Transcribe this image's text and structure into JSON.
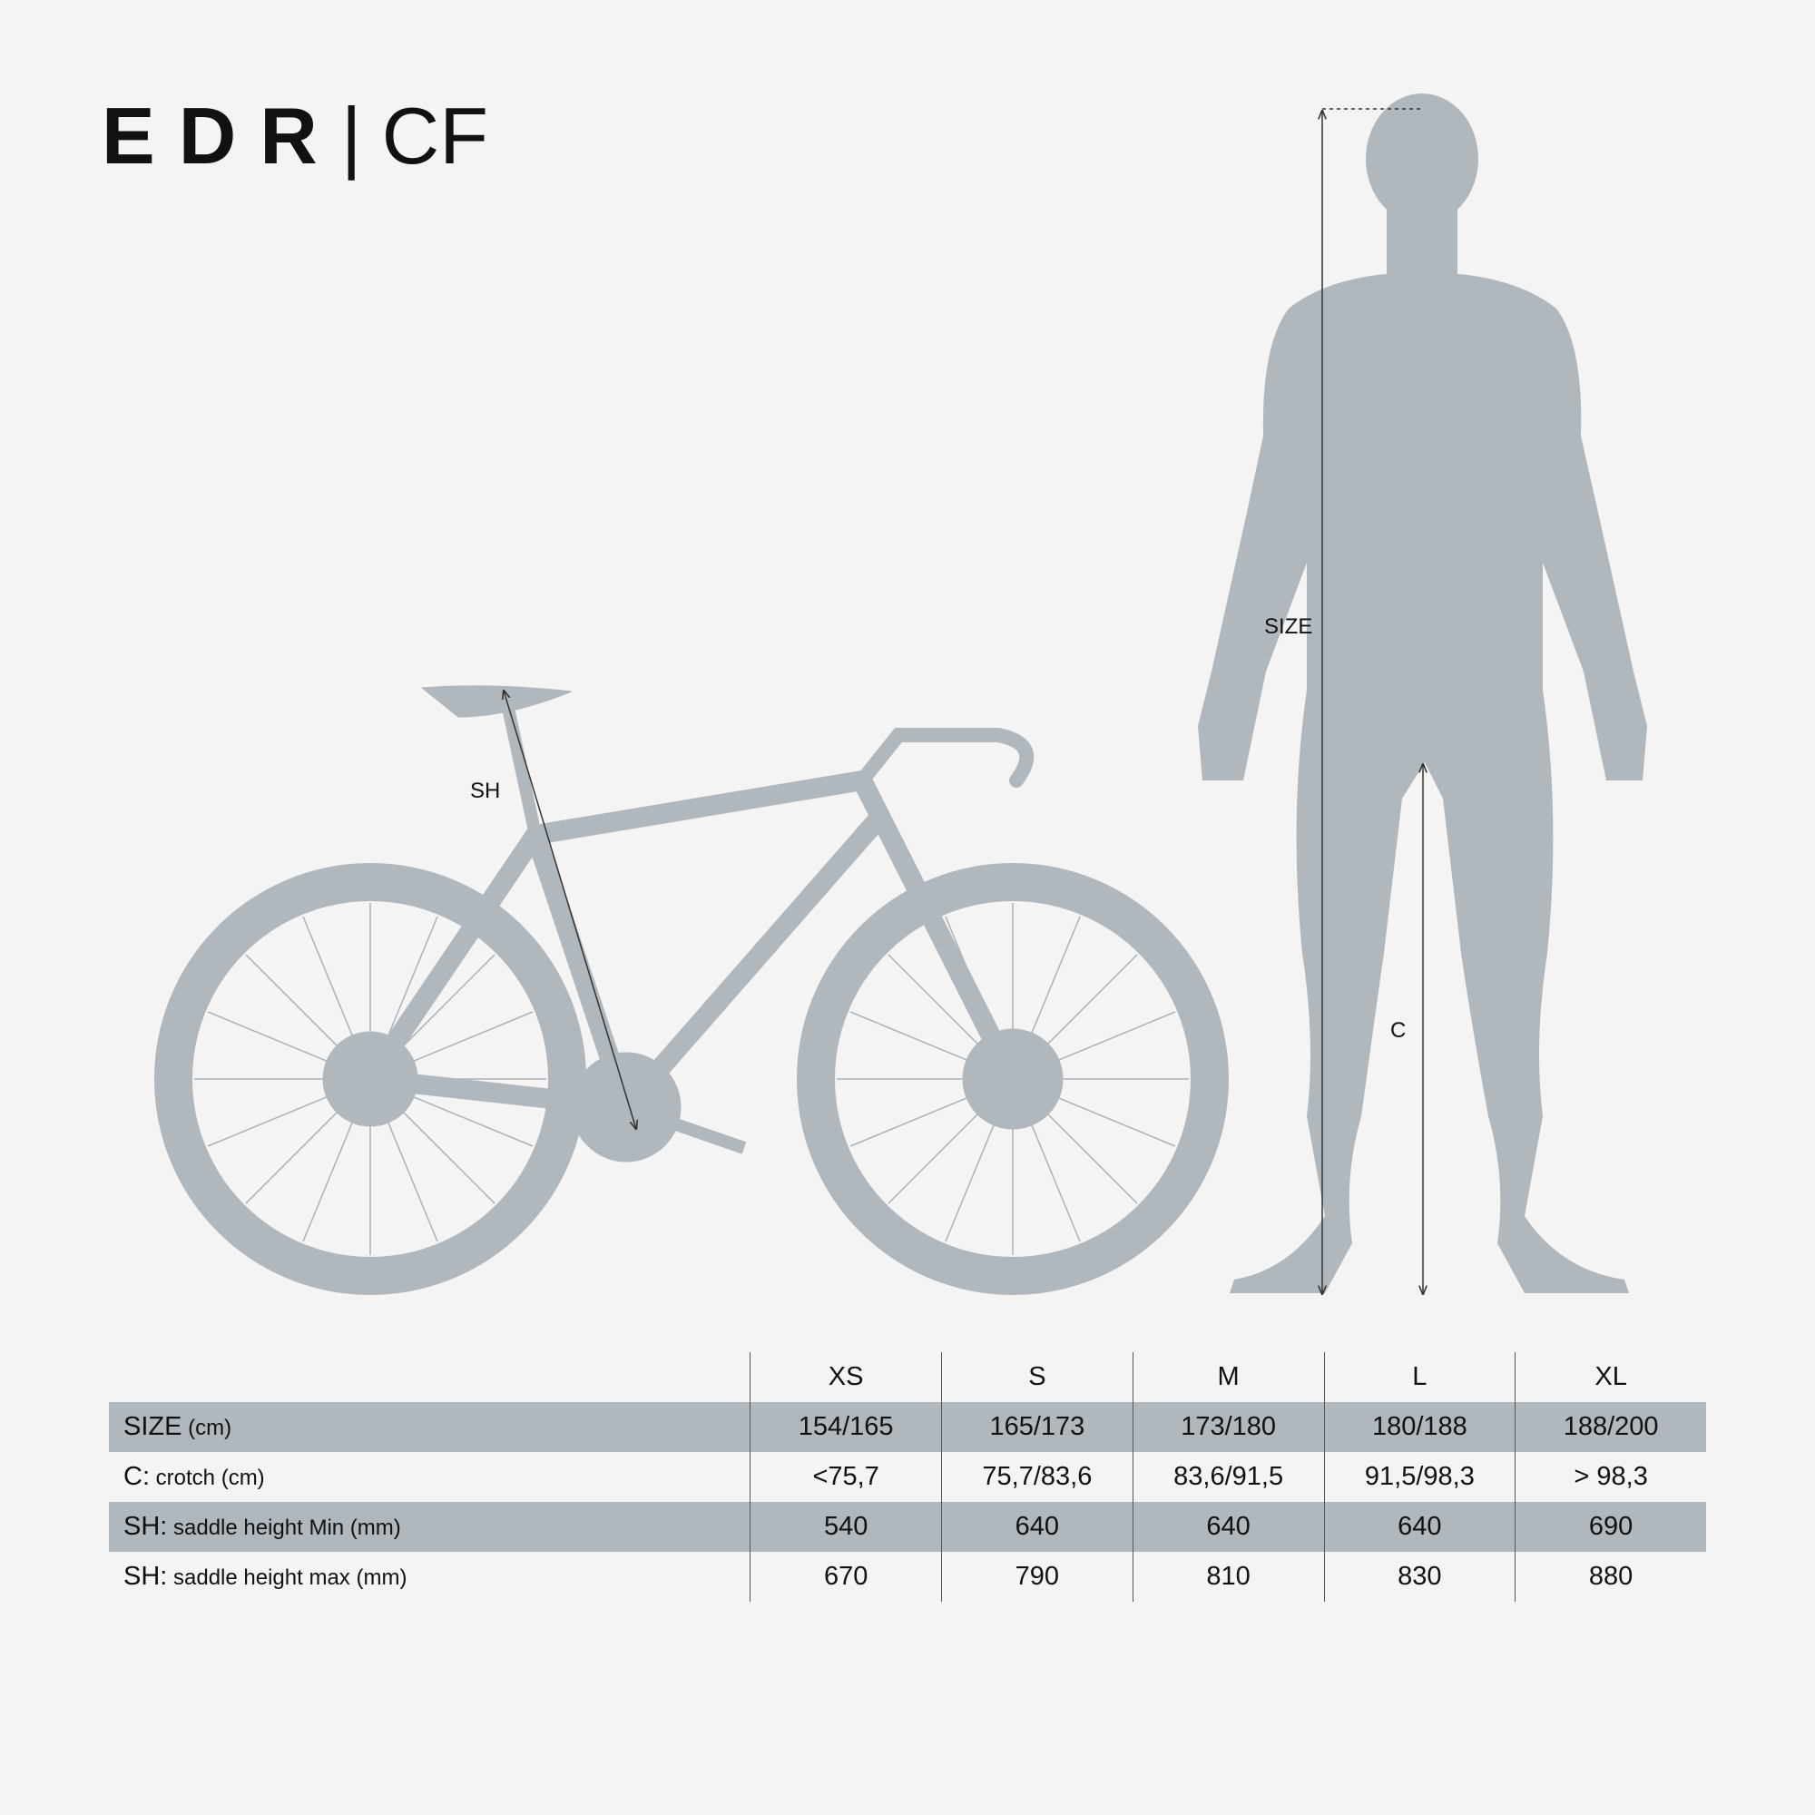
{
  "title": {
    "brand": "EDR",
    "separator": "|",
    "model": "CF"
  },
  "labels": {
    "sh": "SH",
    "size": "SIZE",
    "c": "C"
  },
  "colors": {
    "silhouette": "#b0b7bd",
    "background": "#f4f4f4",
    "band": "#b0b7bd"
  },
  "table": {
    "columns": [
      "XS",
      "S",
      "M",
      "L",
      "XL"
    ],
    "rows": [
      {
        "key": "SIZE",
        "desc": "(cm)",
        "values": [
          "154/165",
          "165/173",
          "173/180",
          "180/188",
          "188/200"
        ]
      },
      {
        "key": "C:",
        "desc": "crotch (cm)",
        "values": [
          "<75,7",
          "75,7/83,6",
          "83,6/91,5",
          "91,5/98,3",
          "> 98,3"
        ]
      },
      {
        "key": "SH:",
        "desc": "saddle height Min (mm)",
        "values": [
          "540",
          "640",
          "640",
          "640",
          "690"
        ]
      },
      {
        "key": "SH:",
        "desc": "saddle height max (mm)",
        "values": [
          "670",
          "790",
          "810",
          "830",
          "880"
        ]
      }
    ]
  }
}
